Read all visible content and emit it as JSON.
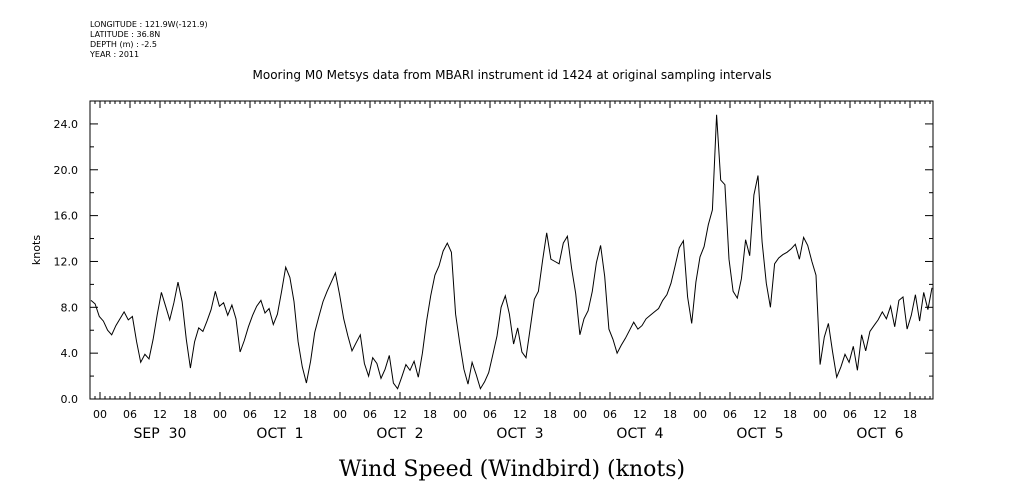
{
  "header": {
    "meta_lines": [
      "LONGITUDE : 121.9W(-121.9)",
      "LATITUDE : 36.8N",
      "DEPTH (m) : -2.5",
      "YEAR : 2011"
    ]
  },
  "chart_data": {
    "type": "line",
    "title": "Mooring M0 Metsys data from MBARI instrument id 1424 at original sampling intervals",
    "xlabel": "Wind Speed (Windbird) (knots)",
    "ylabel": "knots",
    "ylim": [
      0,
      26
    ],
    "yticks": [
      "0.0",
      "4.0",
      "8.0",
      "12.0",
      "16.0",
      "20.0",
      "24.0"
    ],
    "hour_ticks": [
      "00",
      "06",
      "12",
      "18",
      "00",
      "06",
      "12",
      "18",
      "00",
      "06",
      "12",
      "18",
      "00",
      "06",
      "12",
      "18",
      "00",
      "06",
      "12",
      "18",
      "00",
      "06",
      "12",
      "18",
      "00",
      "06",
      "12",
      "18"
    ],
    "day_labels": [
      "SEP 30",
      "OCT 1",
      "OCT 2",
      "OCT 3",
      "OCT 4",
      "OCT 5",
      "OCT 6"
    ],
    "grid": false,
    "series": [
      {
        "values": [
          [
            0,
            8.6
          ],
          [
            1,
            8.3
          ],
          [
            2,
            7.2
          ],
          [
            3,
            6.8
          ],
          [
            4,
            6.0
          ],
          [
            5,
            5.6
          ],
          [
            6,
            6.4
          ],
          [
            7,
            7.0
          ],
          [
            8,
            7.6
          ],
          [
            9,
            6.9
          ],
          [
            10,
            7.2
          ],
          [
            11,
            5.0
          ],
          [
            12,
            3.2
          ],
          [
            13,
            3.9
          ],
          [
            14,
            3.5
          ],
          [
            15,
            5.2
          ],
          [
            16,
            7.4
          ],
          [
            17,
            9.3
          ],
          [
            18,
            8.1
          ],
          [
            19,
            6.9
          ],
          [
            20,
            8.4
          ],
          [
            21,
            10.2
          ],
          [
            22,
            8.5
          ],
          [
            23,
            5.2
          ],
          [
            24,
            2.7
          ],
          [
            25,
            5.0
          ],
          [
            26,
            6.2
          ],
          [
            27,
            5.9
          ],
          [
            28,
            6.8
          ],
          [
            29,
            7.8
          ],
          [
            30,
            9.4
          ],
          [
            31,
            8.1
          ],
          [
            32,
            8.4
          ],
          [
            33,
            7.3
          ],
          [
            34,
            8.2
          ],
          [
            35,
            7.0
          ],
          [
            36,
            4.1
          ],
          [
            37,
            5.1
          ],
          [
            38,
            6.3
          ],
          [
            39,
            7.3
          ],
          [
            40,
            8.1
          ],
          [
            41,
            8.6
          ],
          [
            42,
            7.5
          ],
          [
            43,
            7.9
          ],
          [
            44,
            6.5
          ],
          [
            45,
            7.4
          ],
          [
            46,
            9.4
          ],
          [
            47,
            11.5
          ],
          [
            48,
            10.6
          ],
          [
            49,
            8.5
          ],
          [
            50,
            5.0
          ],
          [
            51,
            2.8
          ],
          [
            52,
            1.4
          ],
          [
            53,
            3.3
          ],
          [
            54,
            5.8
          ],
          [
            55,
            7.2
          ],
          [
            56,
            8.5
          ],
          [
            57,
            9.4
          ],
          [
            58,
            10.2
          ],
          [
            59,
            11.0
          ],
          [
            60,
            9.1
          ],
          [
            61,
            7.0
          ],
          [
            62,
            5.5
          ],
          [
            63,
            4.2
          ],
          [
            64,
            4.9
          ],
          [
            65,
            5.6
          ],
          [
            66,
            3.1
          ],
          [
            67,
            2.0
          ],
          [
            68,
            3.6
          ],
          [
            69,
            3.1
          ],
          [
            70,
            1.8
          ],
          [
            71,
            2.6
          ],
          [
            72,
            3.8
          ],
          [
            73,
            1.4
          ],
          [
            74,
            0.9
          ],
          [
            75,
            1.9
          ],
          [
            76,
            3.0
          ],
          [
            77,
            2.5
          ],
          [
            78,
            3.3
          ],
          [
            79,
            1.9
          ],
          [
            80,
            4.0
          ],
          [
            81,
            6.8
          ],
          [
            82,
            9.0
          ],
          [
            83,
            10.8
          ],
          [
            84,
            11.6
          ],
          [
            85,
            12.9
          ],
          [
            86,
            13.6
          ],
          [
            87,
            12.8
          ],
          [
            88,
            7.4
          ],
          [
            89,
            4.9
          ],
          [
            90,
            2.6
          ],
          [
            91,
            1.3
          ],
          [
            92,
            3.2
          ],
          [
            93,
            2.1
          ],
          [
            94,
            0.9
          ],
          [
            95,
            1.5
          ],
          [
            96,
            2.3
          ],
          [
            97,
            3.9
          ],
          [
            98,
            5.5
          ],
          [
            99,
            8.0
          ],
          [
            100,
            9.0
          ],
          [
            101,
            7.4
          ],
          [
            102,
            4.8
          ],
          [
            103,
            6.2
          ],
          [
            104,
            4.1
          ],
          [
            105,
            3.6
          ],
          [
            106,
            6.1
          ],
          [
            107,
            8.7
          ],
          [
            108,
            9.4
          ],
          [
            109,
            12.1
          ],
          [
            110,
            14.5
          ],
          [
            111,
            12.2
          ],
          [
            112,
            12.0
          ],
          [
            113,
            11.8
          ],
          [
            114,
            13.6
          ],
          [
            115,
            14.2
          ],
          [
            116,
            11.4
          ],
          [
            117,
            9.2
          ],
          [
            118,
            5.6
          ],
          [
            119,
            7.0
          ],
          [
            120,
            7.7
          ],
          [
            121,
            9.4
          ],
          [
            122,
            11.9
          ],
          [
            123,
            13.4
          ],
          [
            124,
            10.7
          ],
          [
            125,
            6.1
          ],
          [
            126,
            5.2
          ],
          [
            127,
            4.0
          ],
          [
            128,
            4.7
          ],
          [
            129,
            5.3
          ],
          [
            130,
            6.0
          ],
          [
            131,
            6.7
          ],
          [
            132,
            6.1
          ],
          [
            133,
            6.4
          ],
          [
            134,
            7.0
          ],
          [
            135,
            7.3
          ],
          [
            136,
            7.6
          ],
          [
            137,
            7.9
          ],
          [
            138,
            8.6
          ],
          [
            139,
            9.1
          ],
          [
            140,
            10.1
          ],
          [
            141,
            11.6
          ],
          [
            142,
            13.2
          ],
          [
            143,
            13.8
          ],
          [
            144,
            8.9
          ],
          [
            145,
            6.6
          ],
          [
            146,
            10.2
          ],
          [
            147,
            12.4
          ],
          [
            148,
            13.3
          ],
          [
            149,
            15.2
          ],
          [
            150,
            16.5
          ],
          [
            151,
            24.8
          ],
          [
            152,
            19.1
          ],
          [
            153,
            18.7
          ],
          [
            154,
            12.2
          ],
          [
            155,
            9.4
          ],
          [
            156,
            8.8
          ],
          [
            157,
            10.5
          ],
          [
            158,
            13.9
          ],
          [
            159,
            12.5
          ],
          [
            160,
            17.8
          ],
          [
            161,
            19.5
          ],
          [
            162,
            13.7
          ],
          [
            163,
            10.1
          ],
          [
            164,
            8.0
          ],
          [
            165,
            11.8
          ],
          [
            166,
            12.3
          ],
          [
            167,
            12.6
          ],
          [
            168,
            12.8
          ],
          [
            169,
            13.1
          ],
          [
            170,
            13.5
          ],
          [
            171,
            12.2
          ],
          [
            172,
            14.1
          ],
          [
            173,
            13.4
          ],
          [
            174,
            12.0
          ],
          [
            175,
            10.8
          ],
          [
            176,
            3.0
          ],
          [
            177,
            5.4
          ],
          [
            178,
            6.6
          ],
          [
            179,
            4.1
          ],
          [
            180,
            1.9
          ],
          [
            181,
            2.8
          ],
          [
            182,
            3.9
          ],
          [
            183,
            3.2
          ],
          [
            184,
            4.6
          ],
          [
            185,
            2.5
          ],
          [
            186,
            5.6
          ],
          [
            187,
            4.2
          ],
          [
            188,
            5.9
          ],
          [
            189,
            6.4
          ],
          [
            190,
            6.9
          ],
          [
            191,
            7.6
          ],
          [
            192,
            7.0
          ],
          [
            193,
            8.1
          ],
          [
            194,
            6.3
          ],
          [
            195,
            8.6
          ],
          [
            196,
            8.9
          ],
          [
            197,
            6.1
          ],
          [
            198,
            7.3
          ],
          [
            199,
            9.1
          ],
          [
            200,
            6.8
          ],
          [
            201,
            9.3
          ],
          [
            202,
            7.8
          ],
          [
            203,
            9.7
          ]
        ]
      }
    ]
  }
}
